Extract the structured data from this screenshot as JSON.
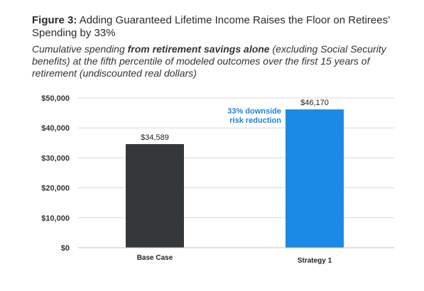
{
  "figure": {
    "label": "Figure 3:",
    "title": "Adding Guaranteed Lifetime Income Raises the Floor on Retirees’ Spending by 33%",
    "subtitle_pre": "Cumulative spending ",
    "subtitle_em": "from retirement savings alone",
    "subtitle_post": " (excluding Social Security benefits) at the fifth percentile of modeled outcomes over the first 15 years of retirement (undiscounted real dollars)"
  },
  "chart_data": {
    "type": "bar",
    "categories": [
      "Base Case",
      "Strategy 1"
    ],
    "values": [
      34589,
      46170
    ],
    "data_labels": [
      "$34,589",
      "$46,170"
    ],
    "bar_colors": [
      "#34383b",
      "#1a8ae6"
    ],
    "ylim": [
      0,
      50000
    ],
    "yticks": [
      0,
      10000,
      20000,
      30000,
      40000,
      50000
    ],
    "ytick_labels": [
      "$0",
      "$10,000",
      "$20,000",
      "$30,000",
      "$40,000",
      "$50,000"
    ],
    "grid": true,
    "annotation": {
      "text_line1": "33% downside",
      "text_line2": "risk reduction",
      "color": "#1a82e2"
    }
  }
}
